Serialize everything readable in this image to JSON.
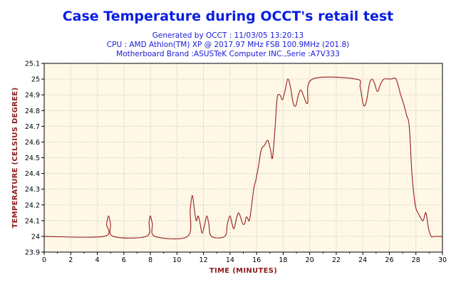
{
  "chart_data": {
    "type": "line",
    "title": "Case Temperature during OCCT's retail test",
    "subtitle_lines": [
      "Generated by OCCT : 11/03/05 13:20:13",
      "CPU : AMD Athlon(TM) XP @ 2017.97 MHz FSB 100.9MHz (201.8)",
      "Motherboard Brand :ASUSTeK Computer INC.,Serie :A7V333"
    ],
    "xlabel": "TIME (MINUTES)",
    "ylabel": "TEMPERATURE (CELSIUS DEGREE)",
    "xlim": [
      0,
      30
    ],
    "ylim": [
      23.9,
      25.1
    ],
    "x_ticks": [
      "0",
      "2",
      "4",
      "6",
      "8",
      "10",
      "12",
      "14",
      "16",
      "18",
      "20",
      "22",
      "24",
      "26",
      "28",
      "30"
    ],
    "y_ticks": [
      "23.9",
      "24",
      "24.1",
      "24.2",
      "24.3",
      "24.4",
      "24.5",
      "24.6",
      "24.7",
      "24.8",
      "24.9",
      "25",
      "25.1"
    ],
    "grid": true,
    "colors": {
      "line": "#9b1c1c",
      "plot_bg": "#fff8e6",
      "grid": "#b8b8b8",
      "title": "#0a1ee0",
      "subtitle": "#1a1ad8",
      "axis_title": "#8c2020"
    },
    "series": [
      {
        "x": [
          0,
          4.5,
          4.7,
          4.85,
          5.0,
          5.2,
          7.7,
          7.9,
          8.0,
          8.15,
          8.35,
          10.8,
          11.0,
          11.15,
          11.3,
          11.45,
          11.6,
          11.75,
          11.9,
          12.1,
          12.25,
          12.4,
          12.6,
          13.6,
          13.8,
          14.0,
          14.15,
          14.3,
          14.5,
          14.65,
          14.8,
          14.95,
          15.1,
          15.2,
          15.3,
          15.45,
          15.6,
          15.8,
          15.95,
          16.15,
          16.35,
          16.6,
          16.85,
          17.05,
          17.2,
          17.4,
          17.55,
          17.75,
          17.95,
          18.15,
          18.35,
          18.55,
          18.75,
          18.95,
          19.15,
          19.35,
          19.6,
          19.85,
          20.2,
          23.5,
          23.8,
          24.0,
          24.15,
          24.3,
          24.5,
          24.7,
          24.9,
          25.1,
          25.35,
          25.6,
          26.1,
          26.5,
          26.85,
          27.05,
          27.3,
          27.5,
          27.7,
          27.95,
          28.15,
          28.35,
          28.55,
          28.75,
          28.95,
          29.15,
          29.4,
          30
        ],
        "y": [
          24.0,
          24.0,
          24.08,
          24.13,
          24.08,
          24.0,
          24.0,
          24.09,
          24.13,
          24.08,
          24.0,
          24.0,
          24.17,
          24.26,
          24.18,
          24.1,
          24.13,
          24.08,
          24.02,
          24.08,
          24.13,
          24.08,
          24.0,
          24.0,
          24.08,
          24.13,
          24.08,
          24.05,
          24.12,
          24.15,
          24.12,
          24.08,
          24.08,
          24.12,
          24.12,
          24.1,
          24.18,
          24.31,
          24.36,
          24.45,
          24.55,
          24.58,
          24.61,
          24.55,
          24.5,
          24.7,
          24.88,
          24.9,
          24.87,
          24.93,
          25.0,
          24.95,
          24.85,
          24.83,
          24.9,
          24.93,
          24.88,
          24.85,
          25.0,
          25.0,
          24.95,
          24.85,
          24.83,
          24.87,
          24.97,
          25.0,
          24.97,
          24.92,
          24.97,
          25.0,
          25.0,
          25.0,
          24.9,
          24.85,
          24.77,
          24.7,
          24.4,
          24.2,
          24.15,
          24.12,
          24.1,
          24.15,
          24.05,
          24.0,
          24.0,
          24.0
        ]
      }
    ]
  }
}
